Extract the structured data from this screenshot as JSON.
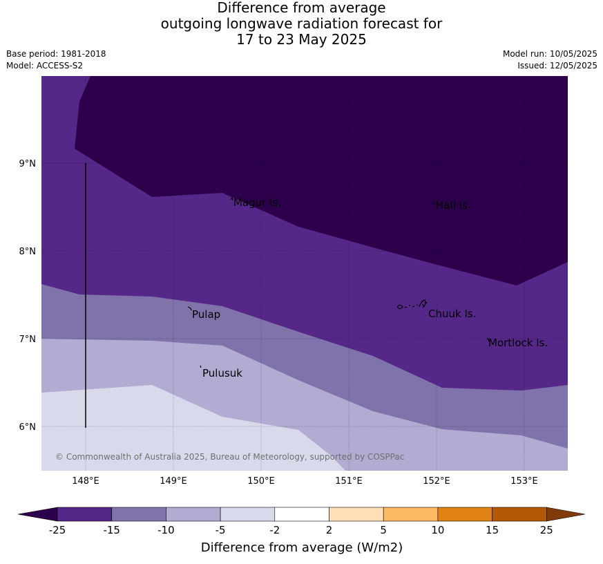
{
  "title": {
    "line1": "Difference from average",
    "line2": "outgoing longwave radiation forecast for",
    "line3": "17 to 23 May 2025"
  },
  "meta": {
    "base_period": "Base period: 1981-2018",
    "model": "Model: ACCESS-S2",
    "model_run": "Model run: 10/05/2025",
    "issued": "Issued: 12/05/2025"
  },
  "map": {
    "lat_labels": [
      "9°N",
      "8°N",
      "7°N",
      "6°N"
    ],
    "lon_labels": [
      "148°E",
      "149°E",
      "150°E",
      "151°E",
      "152°E",
      "153°E"
    ],
    "places": [
      "Magur Is.",
      "Hall Is.",
      "Pulap",
      "Chuuk Is.",
      "Mortlock Is.",
      "Pulusuk"
    ],
    "copyright": "© Commonwealth of Australia 2025, Bureau of Meteorology, supported by COSPPac"
  },
  "colorbar": {
    "ticks": [
      "-25",
      "-15",
      "-10",
      "-5",
      "-2",
      "2",
      "5",
      "10",
      "15",
      "25"
    ],
    "label": "Difference from average (W/m2)",
    "colors": [
      "#2d004b",
      "#542788",
      "#8073ac",
      "#b2abd2",
      "#d8daeb",
      "#ffffff",
      "#fee0b6",
      "#fdb863",
      "#e08214",
      "#b35806",
      "#7f3b08"
    ]
  }
}
